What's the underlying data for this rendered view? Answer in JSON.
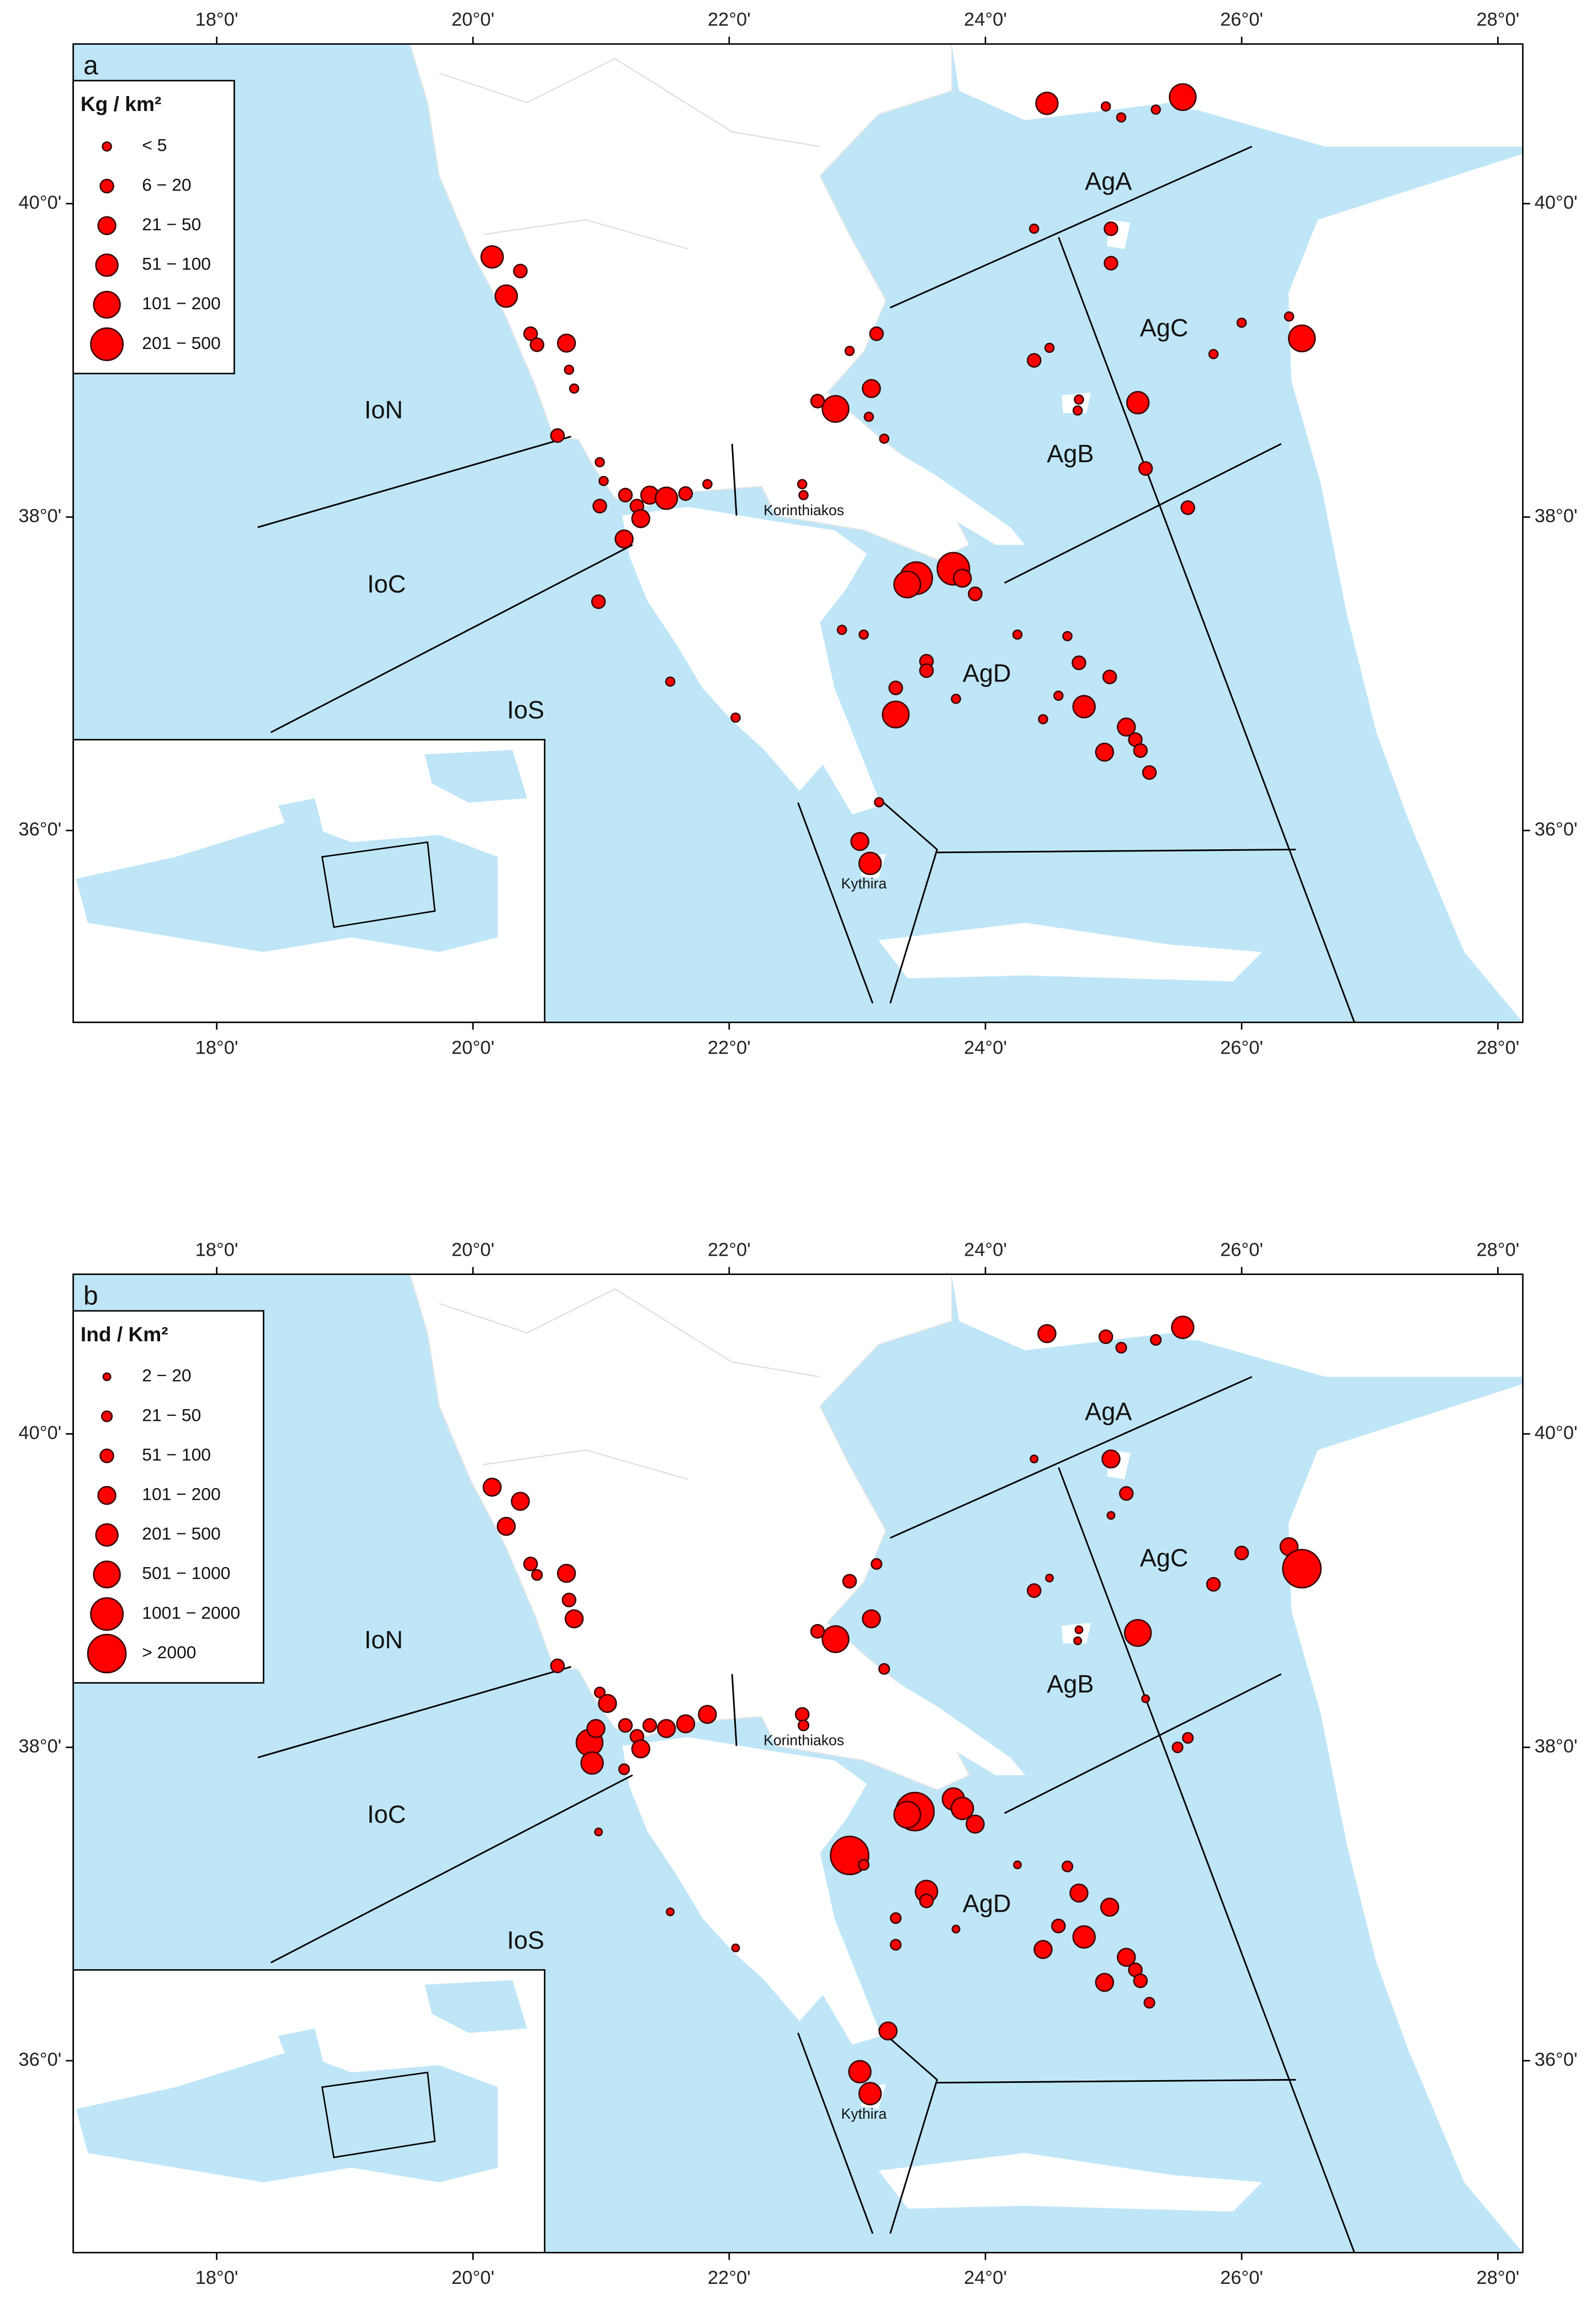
{
  "panels": [
    {
      "label": "a",
      "legend_title": "Kg / km²",
      "legend": [
        "< 5",
        "6 − 20",
        "21 − 50",
        "51 − 100",
        "101 − 200",
        "201 − 500"
      ],
      "regions": [
        "AgA",
        "AgB",
        "AgC",
        "AgD",
        "IoN",
        "IoC",
        "IoS",
        "Korinthiakos",
        "Kythira"
      ],
      "lon_ticks": [
        {
          "value": 18,
          "label": "18°0'"
        },
        {
          "value": 20,
          "label": "20°0'"
        },
        {
          "value": 22,
          "label": "22°0'"
        },
        {
          "value": 24,
          "label": "24°0'"
        },
        {
          "value": 26,
          "label": "26°0'"
        },
        {
          "value": 28,
          "label": "28°0'"
        }
      ],
      "lat_ticks": [
        {
          "value": 36,
          "label": "36°0'"
        },
        {
          "value": 38,
          "label": "38°0'"
        },
        {
          "value": 40,
          "label": "40°0'"
        }
      ],
      "points": [
        [
          24.48,
          40.64,
          3
        ],
        [
          24.94,
          40.62,
          0
        ],
        [
          25.06,
          40.55,
          0
        ],
        [
          25.54,
          40.68,
          4
        ],
        [
          25.33,
          40.6,
          0
        ],
        [
          20.15,
          39.66,
          3
        ],
        [
          20.37,
          39.57,
          1
        ],
        [
          20.26,
          39.41,
          3
        ],
        [
          20.45,
          39.17,
          1
        ],
        [
          20.5,
          39.1,
          1
        ],
        [
          20.73,
          39.11,
          2
        ],
        [
          20.75,
          38.94,
          0
        ],
        [
          20.79,
          38.82,
          0
        ],
        [
          20.66,
          38.52,
          1
        ],
        [
          20.99,
          38.35,
          0
        ],
        [
          21.02,
          38.23,
          0
        ],
        [
          20.99,
          38.07,
          1
        ],
        [
          21.19,
          38.14,
          1
        ],
        [
          21.28,
          38.07,
          1
        ],
        [
          21.38,
          38.14,
          2
        ],
        [
          21.51,
          38.12,
          3
        ],
        [
          21.66,
          38.15,
          1
        ],
        [
          21.83,
          38.21,
          0
        ],
        [
          21.31,
          37.99,
          2
        ],
        [
          21.18,
          37.86,
          2
        ],
        [
          20.98,
          37.46,
          1
        ],
        [
          21.54,
          36.95,
          0
        ],
        [
          22.05,
          36.72,
          0
        ],
        [
          22.57,
          38.21,
          0
        ],
        [
          22.58,
          38.14,
          0
        ],
        [
          22.83,
          38.69,
          4
        ],
        [
          22.69,
          38.74,
          1
        ],
        [
          23.15,
          39.17,
          1
        ],
        [
          22.94,
          39.06,
          0
        ],
        [
          23.11,
          38.82,
          2
        ],
        [
          23.09,
          38.64,
          0
        ],
        [
          23.21,
          38.5,
          0
        ],
        [
          23.75,
          37.67,
          5
        ],
        [
          23.46,
          37.61,
          5
        ],
        [
          23.39,
          37.57,
          4
        ],
        [
          23.82,
          37.61,
          2
        ],
        [
          23.92,
          37.51,
          1
        ],
        [
          22.88,
          37.28,
          0
        ],
        [
          23.05,
          37.25,
          0
        ],
        [
          23.3,
          36.74,
          4
        ],
        [
          23.3,
          36.91,
          1
        ],
        [
          23.54,
          37.08,
          1
        ],
        [
          23.54,
          37.02,
          1
        ],
        [
          23.77,
          36.84,
          0
        ],
        [
          24.25,
          37.25,
          0
        ],
        [
          24.38,
          39.84,
          0
        ],
        [
          24.98,
          39.84,
          1
        ],
        [
          24.98,
          39.62,
          1
        ],
        [
          24.5,
          39.08,
          0
        ],
        [
          24.38,
          39.0,
          1
        ],
        [
          25.19,
          38.73,
          3
        ],
        [
          24.73,
          38.75,
          0
        ],
        [
          24.72,
          38.68,
          0
        ],
        [
          25.25,
          38.31,
          1
        ],
        [
          26.0,
          39.24,
          0
        ],
        [
          25.78,
          39.04,
          0
        ],
        [
          26.37,
          39.28,
          0
        ],
        [
          26.47,
          39.14,
          4
        ],
        [
          25.58,
          38.06,
          1
        ],
        [
          24.77,
          36.79,
          3
        ],
        [
          24.73,
          37.07,
          1
        ],
        [
          24.97,
          36.98,
          1
        ],
        [
          24.57,
          36.86,
          0
        ],
        [
          24.45,
          36.71,
          0
        ],
        [
          24.93,
          36.5,
          2
        ],
        [
          25.1,
          36.66,
          2
        ],
        [
          25.17,
          36.58,
          1
        ],
        [
          25.21,
          36.51,
          1
        ],
        [
          25.28,
          36.37,
          1
        ],
        [
          23.17,
          36.18,
          0
        ],
        [
          23.02,
          35.93,
          2
        ],
        [
          23.1,
          35.79,
          3
        ],
        [
          24.64,
          37.24,
          0
        ]
      ]
    },
    {
      "label": "b",
      "legend_title": "Ind / Km²",
      "legend": [
        "2 − 20",
        "21 − 50",
        "51 − 100",
        "101 − 200",
        "201 − 500",
        "501 − 1000",
        "1001 − 2000",
        "> 2000"
      ],
      "regions": [
        "AgA",
        "AgB",
        "AgC",
        "AgD",
        "IoN",
        "IoC",
        "IoS",
        "Korinthiakos",
        "Kythira"
      ],
      "lon_ticks": [
        {
          "value": 18,
          "label": "18°0'"
        },
        {
          "value": 20,
          "label": "20°0'"
        },
        {
          "value": 22,
          "label": "22°0'"
        },
        {
          "value": 24,
          "label": "24°0'"
        },
        {
          "value": 26,
          "label": "26°0'"
        },
        {
          "value": 28,
          "label": "28°0'"
        }
      ],
      "lat_ticks": [
        {
          "value": 36,
          "label": "36°0'"
        },
        {
          "value": 38,
          "label": "38°0'"
        },
        {
          "value": 40,
          "label": "40°0'"
        }
      ],
      "points": [
        [
          24.48,
          40.64,
          3
        ],
        [
          24.94,
          40.62,
          2
        ],
        [
          25.06,
          40.55,
          1
        ],
        [
          25.54,
          40.68,
          4
        ],
        [
          25.33,
          40.6,
          1
        ],
        [
          20.15,
          39.66,
          3
        ],
        [
          20.37,
          39.57,
          3
        ],
        [
          20.26,
          39.41,
          3
        ],
        [
          20.45,
          39.17,
          2
        ],
        [
          20.5,
          39.1,
          1
        ],
        [
          20.73,
          39.11,
          3
        ],
        [
          20.75,
          38.94,
          2
        ],
        [
          20.79,
          38.82,
          3
        ],
        [
          20.66,
          38.52,
          2
        ],
        [
          20.99,
          38.35,
          1
        ],
        [
          20.91,
          38.03,
          5
        ],
        [
          20.93,
          37.9,
          4
        ],
        [
          20.96,
          38.12,
          3
        ],
        [
          21.05,
          38.28,
          3
        ],
        [
          21.19,
          38.14,
          2
        ],
        [
          21.28,
          38.07,
          2
        ],
        [
          21.38,
          38.14,
          2
        ],
        [
          21.51,
          38.12,
          3
        ],
        [
          21.66,
          38.15,
          3
        ],
        [
          21.83,
          38.21,
          3
        ],
        [
          21.31,
          37.99,
          3
        ],
        [
          21.18,
          37.86,
          1
        ],
        [
          20.98,
          37.46,
          0
        ],
        [
          21.54,
          36.95,
          0
        ],
        [
          22.05,
          36.72,
          0
        ],
        [
          22.57,
          38.21,
          2
        ],
        [
          22.58,
          38.14,
          1
        ],
        [
          22.83,
          38.69,
          5
        ],
        [
          22.69,
          38.74,
          2
        ],
        [
          23.15,
          39.17,
          1
        ],
        [
          22.94,
          39.06,
          2
        ],
        [
          23.11,
          38.82,
          3
        ],
        [
          23.21,
          38.5,
          1
        ],
        [
          23.75,
          37.67,
          4
        ],
        [
          23.45,
          37.59,
          7
        ],
        [
          23.39,
          37.57,
          5
        ],
        [
          23.82,
          37.61,
          4
        ],
        [
          23.92,
          37.51,
          3
        ],
        [
          22.94,
          37.31,
          7
        ],
        [
          23.05,
          37.25,
          1
        ],
        [
          23.3,
          36.74,
          1
        ],
        [
          23.3,
          36.91,
          1
        ],
        [
          23.54,
          37.08,
          4
        ],
        [
          23.54,
          37.02,
          2
        ],
        [
          23.77,
          36.84,
          0
        ],
        [
          24.25,
          37.25,
          0
        ],
        [
          24.38,
          39.84,
          0
        ],
        [
          24.98,
          39.84,
          3
        ],
        [
          25.1,
          39.62,
          2
        ],
        [
          24.98,
          39.48,
          0
        ],
        [
          24.5,
          39.08,
          0
        ],
        [
          24.38,
          39.0,
          2
        ],
        [
          25.19,
          38.73,
          5
        ],
        [
          24.73,
          38.75,
          0
        ],
        [
          24.72,
          38.68,
          0
        ],
        [
          25.25,
          38.31,
          0
        ],
        [
          26.0,
          39.24,
          2
        ],
        [
          25.78,
          39.04,
          2
        ],
        [
          26.37,
          39.28,
          3
        ],
        [
          26.47,
          39.14,
          7
        ],
        [
          25.58,
          38.06,
          1
        ],
        [
          25.5,
          38.0,
          1
        ],
        [
          24.77,
          36.79,
          4
        ],
        [
          24.73,
          37.07,
          3
        ],
        [
          24.97,
          36.98,
          3
        ],
        [
          24.57,
          36.86,
          2
        ],
        [
          24.45,
          36.71,
          3
        ],
        [
          24.93,
          36.5,
          3
        ],
        [
          25.1,
          36.66,
          3
        ],
        [
          25.17,
          36.58,
          2
        ],
        [
          25.21,
          36.51,
          2
        ],
        [
          25.28,
          36.37,
          1
        ],
        [
          23.24,
          36.19,
          3
        ],
        [
          23.02,
          35.93,
          4
        ],
        [
          23.1,
          35.79,
          4
        ],
        [
          24.64,
          37.24,
          1
        ]
      ]
    }
  ]
}
